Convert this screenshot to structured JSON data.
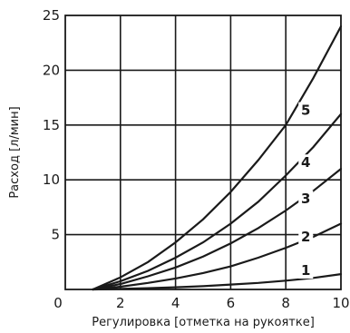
{
  "chart_data": {
    "type": "line",
    "xlabel": "Регулировка [отметка на рукоятке]",
    "ylabel": "Расход [л/мин]",
    "xlim": [
      0,
      10
    ],
    "ylim": [
      0,
      25
    ],
    "x_ticks": [
      0,
      2,
      4,
      6,
      8,
      10
    ],
    "y_ticks": [
      0,
      5,
      10,
      15,
      20,
      25
    ],
    "grid": true,
    "series": [
      {
        "name": "1",
        "x": [
          1.0,
          2,
          3,
          4,
          5,
          6,
          7,
          8,
          9,
          10
        ],
        "values": [
          0,
          0.05,
          0.12,
          0.2,
          0.3,
          0.45,
          0.6,
          0.8,
          1.05,
          1.4
        ]
      },
      {
        "name": "2",
        "x": [
          1.0,
          2,
          3,
          4,
          5,
          6,
          7,
          8,
          9,
          10
        ],
        "values": [
          0,
          0.25,
          0.6,
          1.0,
          1.5,
          2.1,
          2.9,
          3.8,
          4.8,
          6.0
        ]
      },
      {
        "name": "3",
        "x": [
          1.0,
          2,
          3,
          4,
          5,
          6,
          7,
          8,
          9,
          10
        ],
        "values": [
          0,
          0.5,
          1.2,
          2.0,
          3.0,
          4.2,
          5.6,
          7.2,
          9.0,
          11.0
        ]
      },
      {
        "name": "4",
        "x": [
          1.0,
          2,
          3,
          4,
          5,
          6,
          7,
          8,
          9,
          10
        ],
        "values": [
          0,
          0.75,
          1.7,
          2.9,
          4.3,
          6.0,
          8.0,
          10.4,
          13.0,
          16.0
        ]
      },
      {
        "name": "5",
        "x": [
          1.0,
          2,
          3,
          4,
          5,
          6,
          7,
          8,
          9,
          10
        ],
        "values": [
          0,
          1.1,
          2.5,
          4.3,
          6.4,
          8.9,
          11.8,
          15.0,
          19.3,
          24.0
        ]
      }
    ]
  }
}
